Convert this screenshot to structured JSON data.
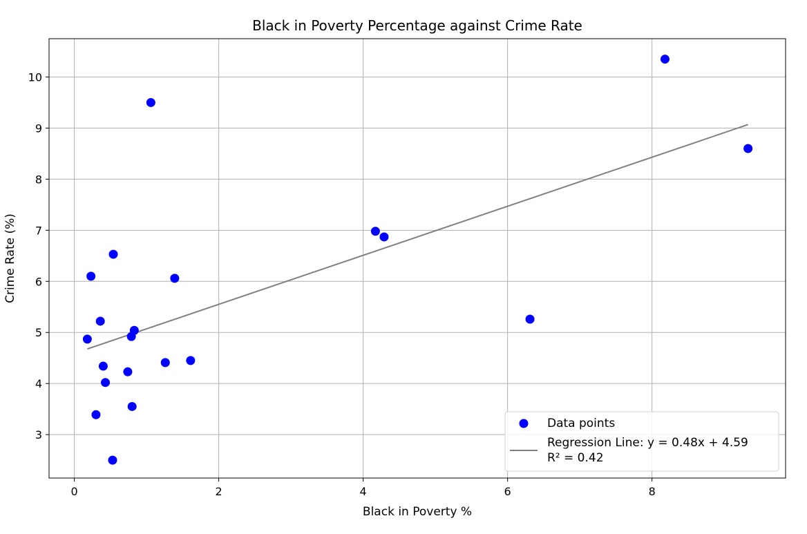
{
  "chart_data": {
    "type": "scatter",
    "title": "Black in Poverty Percentage against Crime Rate",
    "xlabel": "Black in Poverty %",
    "ylabel": "Crime Rate (%)",
    "xlim": [
      -0.35,
      9.85
    ],
    "ylim": [
      2.15,
      10.75
    ],
    "xticks": [
      0,
      2,
      4,
      6,
      8
    ],
    "yticks": [
      3,
      4,
      5,
      6,
      7,
      8,
      9,
      10
    ],
    "grid": true,
    "legend_position": "lower-right",
    "series": [
      {
        "name": "Data points",
        "color": "#0000ff",
        "points": [
          {
            "x": 0.18,
            "y": 4.87
          },
          {
            "x": 0.23,
            "y": 6.1
          },
          {
            "x": 0.3,
            "y": 3.39
          },
          {
            "x": 0.36,
            "y": 5.22
          },
          {
            "x": 0.4,
            "y": 4.34
          },
          {
            "x": 0.43,
            "y": 4.02
          },
          {
            "x": 0.53,
            "y": 2.5
          },
          {
            "x": 0.54,
            "y": 6.53
          },
          {
            "x": 0.74,
            "y": 4.23
          },
          {
            "x": 0.79,
            "y": 4.92
          },
          {
            "x": 0.8,
            "y": 3.55
          },
          {
            "x": 0.83,
            "y": 5.04
          },
          {
            "x": 1.06,
            "y": 9.5
          },
          {
            "x": 1.26,
            "y": 4.41
          },
          {
            "x": 1.39,
            "y": 6.06
          },
          {
            "x": 1.61,
            "y": 4.45
          },
          {
            "x": 4.17,
            "y": 6.98
          },
          {
            "x": 4.29,
            "y": 6.87
          },
          {
            "x": 6.31,
            "y": 5.26
          },
          {
            "x": 8.18,
            "y": 10.35
          },
          {
            "x": 9.33,
            "y": 8.6
          }
        ]
      }
    ],
    "regression": {
      "name": "Regression Line: y = 0.48x + 4.59",
      "r2_text": "R² = 0.42",
      "slope": 0.48,
      "intercept": 4.59,
      "x_range": [
        0.18,
        9.33
      ],
      "color": "#808080"
    }
  }
}
